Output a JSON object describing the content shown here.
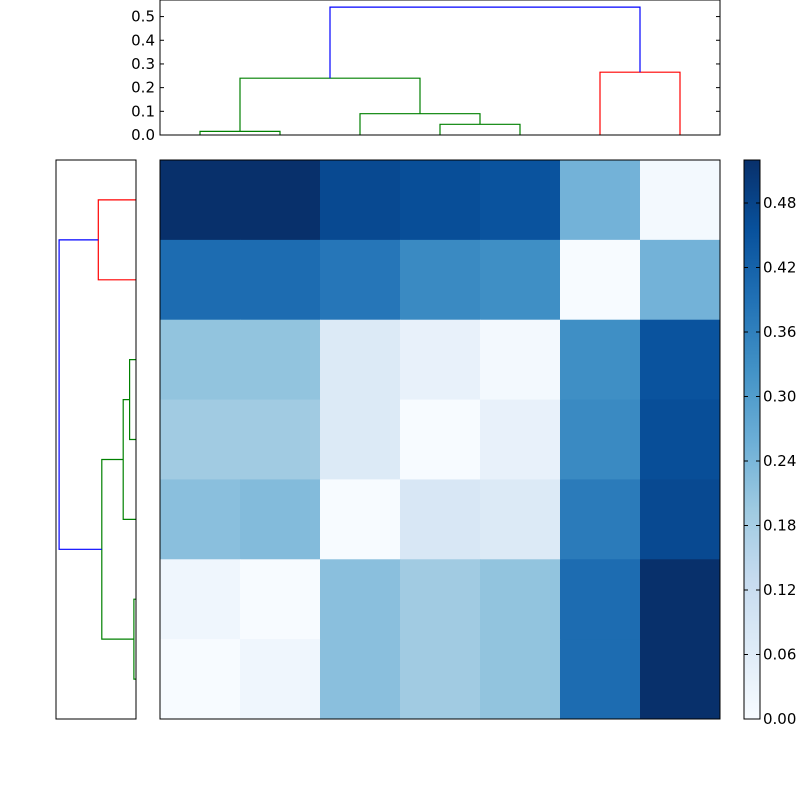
{
  "chart_data": [
    {
      "type": "dendrogram",
      "orientation": "top",
      "y_ticks": [
        "0.0",
        "0.1",
        "0.2",
        "0.3",
        "0.4",
        "0.5"
      ],
      "ylim": [
        0,
        0.57
      ],
      "leaf_count": 7,
      "links": [
        {
          "color": "#008000",
          "left_x": 0.5,
          "right_x": 1.5,
          "left_h": 0,
          "right_h": 0,
          "height": 0.015
        },
        {
          "color": "#008000",
          "left_x": 3.5,
          "right_x": 4.5,
          "left_h": 0,
          "right_h": 0,
          "height": 0.045
        },
        {
          "color": "#008000",
          "left_x": 2.5,
          "right_x": 4.0,
          "left_h": 0,
          "right_h": 0.045,
          "height": 0.09
        },
        {
          "color": "#008000",
          "left_x": 1.0,
          "right_x": 3.25,
          "left_h": 0.015,
          "right_h": 0.09,
          "height": 0.24
        },
        {
          "color": "#ff0000",
          "left_x": 5.5,
          "right_x": 6.5,
          "left_h": 0,
          "right_h": 0,
          "height": 0.265
        },
        {
          "color": "#0000ff",
          "left_x": 2.125,
          "right_x": 6.0,
          "left_h": 0.24,
          "right_h": 0.265,
          "height": 0.54
        }
      ]
    },
    {
      "type": "dendrogram",
      "orientation": "left",
      "leaf_count": 7,
      "max_height": 0.54,
      "links": [
        {
          "color": "#ff0000",
          "top_y": 0.5,
          "bottom_y": 1.5,
          "top_h": 0,
          "bottom_h": 0,
          "height": 0.265
        },
        {
          "color": "#008000",
          "top_y": 2.5,
          "bottom_y": 3.5,
          "top_h": 0,
          "bottom_h": 0,
          "height": 0.045
        },
        {
          "color": "#008000",
          "top_y": 3.0,
          "bottom_y": 4.5,
          "top_h": 0.045,
          "bottom_h": 0,
          "height": 0.09
        },
        {
          "color": "#008000",
          "top_y": 5.5,
          "bottom_y": 6.5,
          "top_h": 0,
          "bottom_h": 0,
          "height": 0.015
        },
        {
          "color": "#008000",
          "top_y": 3.75,
          "bottom_y": 6.0,
          "top_h": 0.09,
          "bottom_h": 0.015,
          "height": 0.24
        },
        {
          "color": "#0000ff",
          "top_y": 1.0,
          "bottom_y": 4.875,
          "top_h": 0.265,
          "bottom_h": 0.24,
          "height": 0.54
        }
      ]
    },
    {
      "type": "heatmap",
      "colormap": "Blues",
      "vmin": 0,
      "vmax": 0.52,
      "matrix": [
        [
          0.52,
          0.52,
          0.47,
          0.46,
          0.45,
          0.25,
          0.01
        ],
        [
          0.4,
          0.4,
          0.38,
          0.34,
          0.33,
          0.0,
          0.25
        ],
        [
          0.21,
          0.21,
          0.07,
          0.04,
          0.01,
          0.33,
          0.45
        ],
        [
          0.19,
          0.19,
          0.07,
          0.0,
          0.04,
          0.34,
          0.46
        ],
        [
          0.22,
          0.23,
          0.0,
          0.08,
          0.07,
          0.37,
          0.47
        ],
        [
          0.02,
          0.0,
          0.22,
          0.19,
          0.21,
          0.4,
          0.52
        ],
        [
          0.0,
          0.02,
          0.22,
          0.19,
          0.21,
          0.4,
          0.52
        ]
      ]
    },
    {
      "type": "colorbar",
      "colormap": "Blues",
      "vmin": 0,
      "vmax": 0.52,
      "ticks": [
        "0.00",
        "0.06",
        "0.12",
        "0.18",
        "0.24",
        "0.30",
        "0.36",
        "0.42",
        "0.48"
      ]
    }
  ]
}
